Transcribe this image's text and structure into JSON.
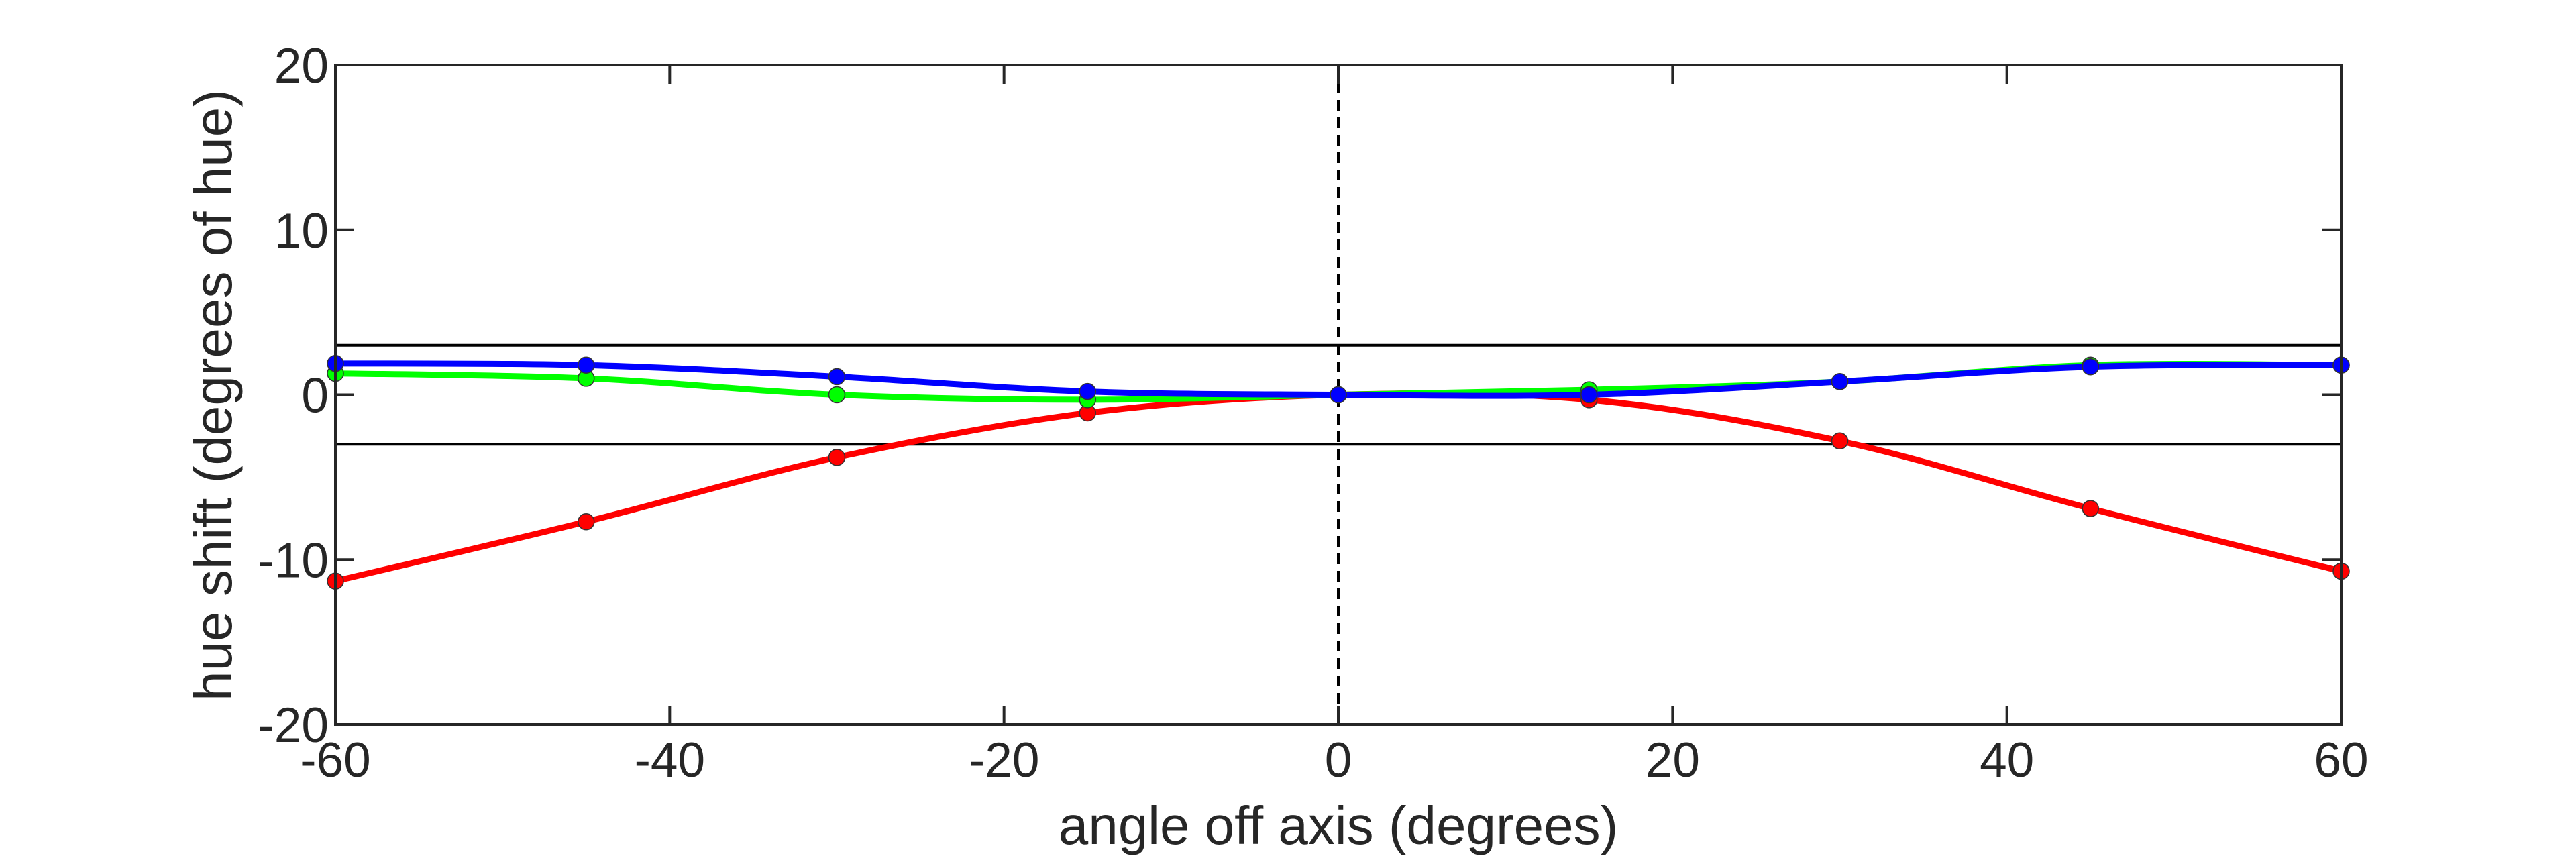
{
  "chart_data": {
    "type": "line",
    "title": "",
    "xlabel": "angle off axis (degrees)",
    "ylabel": "hue shift (degrees of hue)",
    "xlim": [
      -60,
      60
    ],
    "ylim": [
      -20,
      20
    ],
    "xticks": [
      -60,
      -40,
      -20,
      0,
      20,
      40,
      60
    ],
    "yticks": [
      -20,
      -10,
      0,
      10,
      20
    ],
    "grid": false,
    "legend": "none",
    "reference_lines": {
      "horizontal": [
        3,
        -3
      ],
      "vertical_dashed": 0
    },
    "x": [
      -60,
      -45,
      -30,
      -15,
      0,
      15,
      30,
      45,
      60
    ],
    "series": [
      {
        "color": "#ff0000",
        "values": [
          -11.3,
          -7.7,
          -3.8,
          -1.1,
          0,
          -0.3,
          -2.8,
          -6.9,
          -10.7
        ]
      },
      {
        "color": "#00ff00",
        "values": [
          1.3,
          1.0,
          0.0,
          -0.3,
          0,
          0.3,
          0.8,
          1.8,
          1.8
        ]
      },
      {
        "color": "#0000ff",
        "values": [
          1.9,
          1.8,
          1.1,
          0.2,
          0,
          0.0,
          0.8,
          1.7,
          1.8
        ]
      }
    ]
  }
}
